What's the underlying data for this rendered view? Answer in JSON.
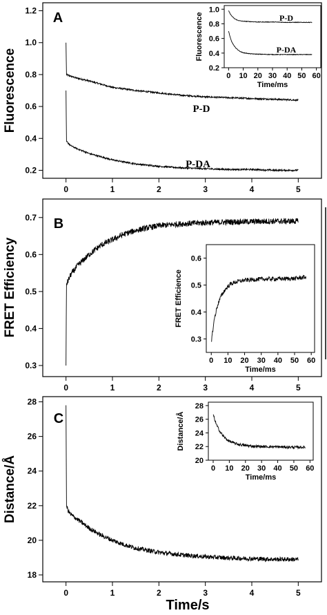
{
  "figure": {
    "xlabel": "Time/s"
  },
  "chart_data": [
    {
      "panel": "A",
      "type": "line",
      "xlabel": "",
      "ylabel": "Fluorescence",
      "xlim": [
        -0.5,
        5.5
      ],
      "ylim": [
        0.15,
        1.25
      ],
      "xticks": [
        "0",
        "1",
        "2",
        "3",
        "4",
        "5"
      ],
      "yticks": [
        "0.2",
        "0.4",
        "0.6",
        "0.8",
        "1.0",
        "1.2"
      ],
      "series": [
        {
          "name": "P-D",
          "x": [
            0,
            0.01,
            0.05,
            0.1,
            0.2,
            0.5,
            1,
            1.5,
            2,
            2.5,
            3,
            3.5,
            4,
            4.5,
            5
          ],
          "y": [
            1.0,
            0.8,
            0.795,
            0.79,
            0.78,
            0.76,
            0.72,
            0.7,
            0.685,
            0.67,
            0.66,
            0.655,
            0.65,
            0.645,
            0.64
          ]
        },
        {
          "name": "P-DA",
          "x": [
            0,
            0.01,
            0.05,
            0.1,
            0.2,
            0.5,
            1,
            1.5,
            2,
            2.5,
            3,
            3.5,
            4,
            4.5,
            5
          ],
          "y": [
            0.7,
            0.38,
            0.37,
            0.355,
            0.34,
            0.305,
            0.265,
            0.24,
            0.225,
            0.215,
            0.21,
            0.205,
            0.205,
            0.2,
            0.2
          ]
        }
      ],
      "inset": {
        "xlabel": "Time/ms",
        "ylabel": "Fluorescence",
        "xlim": [
          -3,
          63
        ],
        "ylim": [
          0.2,
          1.05
        ],
        "xticks": [
          "0",
          "10",
          "20",
          "30",
          "40",
          "50",
          "60"
        ],
        "yticks": [
          "0.2",
          "0.4",
          "0.6",
          "0.8",
          "1.0"
        ],
        "series": [
          {
            "name": "P-D",
            "x": [
              0,
              1,
              2,
              4,
              6,
              8,
              10,
              15,
              20,
              30,
              40,
              50,
              57
            ],
            "y": [
              0.98,
              0.94,
              0.91,
              0.87,
              0.85,
              0.84,
              0.835,
              0.83,
              0.825,
              0.825,
              0.82,
              0.82,
              0.82
            ]
          },
          {
            "name": "P-DA",
            "x": [
              0,
              1,
              2,
              4,
              6,
              8,
              10,
              15,
              20,
              30,
              40,
              50,
              57
            ],
            "y": [
              0.7,
              0.62,
              0.56,
              0.49,
              0.45,
              0.42,
              0.405,
              0.39,
              0.385,
              0.38,
              0.38,
              0.38,
              0.38
            ]
          }
        ]
      }
    },
    {
      "panel": "B",
      "type": "line",
      "xlabel": "",
      "ylabel": "FRET Efficiency",
      "xlim": [
        -0.5,
        5.5
      ],
      "ylim": [
        0.27,
        0.75
      ],
      "xticks": [
        "0",
        "1",
        "2",
        "3",
        "4",
        "5"
      ],
      "yticks": [
        "0.3",
        "0.4",
        "0.5",
        "0.6",
        "0.7"
      ],
      "series": [
        {
          "name": "",
          "x": [
            0,
            0.01,
            0.05,
            0.1,
            0.25,
            0.5,
            0.75,
            1,
            1.25,
            1.5,
            1.75,
            2,
            2.5,
            3,
            3.5,
            4,
            4.5,
            5
          ],
          "y": [
            0.3,
            0.52,
            0.53,
            0.545,
            0.57,
            0.6,
            0.625,
            0.64,
            0.655,
            0.665,
            0.672,
            0.678,
            0.683,
            0.686,
            0.688,
            0.689,
            0.69,
            0.69
          ]
        }
      ],
      "inset": {
        "xlabel": "Time/ms",
        "ylabel": "FRET Efficience",
        "xlim": [
          -3,
          62
        ],
        "ylim": [
          0.25,
          0.65
        ],
        "xticks": [
          "0",
          "10",
          "20",
          "30",
          "40",
          "50",
          "60"
        ],
        "yticks": [
          "0.3",
          "0.4",
          "0.5",
          "0.6"
        ],
        "series": [
          {
            "name": "",
            "x": [
              0,
              2,
              4,
              6,
              8,
              10,
              12,
              15,
              20,
              25,
              30,
              40,
              50,
              57
            ],
            "y": [
              0.29,
              0.38,
              0.43,
              0.46,
              0.48,
              0.495,
              0.505,
              0.512,
              0.518,
              0.52,
              0.522,
              0.523,
              0.524,
              0.53
            ]
          }
        ]
      }
    },
    {
      "panel": "C",
      "type": "line",
      "xlabel": "",
      "ylabel": "Distance/Å",
      "xlim": [
        -0.5,
        5.5
      ],
      "ylim": [
        17.6,
        28.3
      ],
      "xticks": [
        "0",
        "1",
        "2",
        "3",
        "4",
        "5"
      ],
      "yticks": [
        "18",
        "20",
        "22",
        "24",
        "26",
        "28"
      ],
      "series": [
        {
          "name": "",
          "x": [
            0,
            0.01,
            0.05,
            0.1,
            0.25,
            0.5,
            0.75,
            1,
            1.25,
            1.5,
            2,
            2.5,
            3,
            3.5,
            4,
            4.5,
            5
          ],
          "y": [
            27.8,
            22.0,
            21.7,
            21.5,
            21.2,
            20.7,
            20.3,
            20.0,
            19.75,
            19.55,
            19.3,
            19.15,
            19.05,
            18.98,
            18.94,
            18.9,
            18.9
          ]
        }
      ],
      "inset": {
        "xlabel": "Time/ms",
        "ylabel": "Distance/Å",
        "xlim": [
          -3,
          62
        ],
        "ylim": [
          20,
          28.5
        ],
        "xticks": [
          "0",
          "10",
          "20",
          "30",
          "40",
          "50",
          "60"
        ],
        "yticks": [
          "20",
          "22",
          "24",
          "26",
          "28"
        ],
        "series": [
          {
            "name": "",
            "x": [
              0,
              1,
              2,
              4,
              6,
              8,
              10,
              13,
              16,
              20,
              25,
              30,
              40,
              50,
              57
            ],
            "y": [
              26.7,
              25.9,
              25.2,
              24.3,
              23.6,
              23.1,
              22.8,
              22.5,
              22.3,
              22.15,
              22.05,
              22.0,
              21.95,
              21.9,
              21.9
            ]
          }
        ]
      }
    }
  ]
}
